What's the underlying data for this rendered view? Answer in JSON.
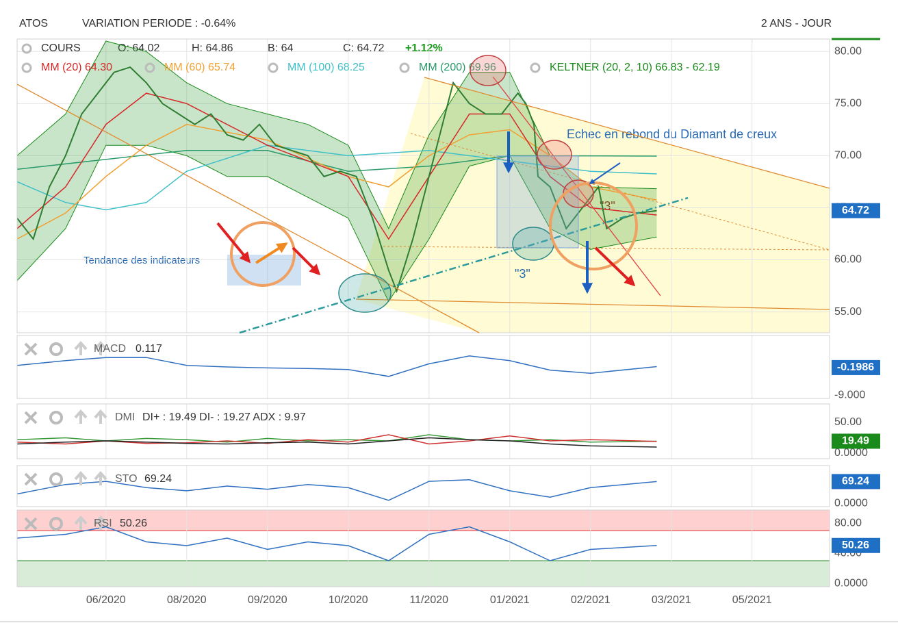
{
  "chart_data": [
    {
      "type": "line",
      "title": "ATOS",
      "subtitle": "VARIATION PERIODE : -0.64%",
      "period_label": "2 ANS - JOUR",
      "quote": [
        "O: 64.02",
        "H: 64.86",
        "B: 64",
        "C: 64.72",
        "+1.12%"
      ],
      "xlim": [
        -1.1,
        8.96
      ],
      "xticks": [
        {
          "value": 0,
          "label": "06/2020"
        },
        {
          "value": 1,
          "label": "08/2020"
        },
        {
          "value": 2,
          "label": "09/2020"
        },
        {
          "value": 3,
          "label": "10/2020"
        },
        {
          "value": 4,
          "label": "11/2020"
        },
        {
          "value": 5,
          "label": "01/2021"
        },
        {
          "value": 6,
          "label": "02/2021"
        },
        {
          "value": 7,
          "label": "03/2021"
        },
        {
          "value": 8,
          "label": "05/2021"
        }
      ],
      "ylim": [
        53,
        81.2
      ],
      "yticks": [
        {
          "value": 55,
          "label": "55.00"
        },
        {
          "value": 60,
          "label": "60.00"
        },
        {
          "value": 65,
          "label": "65.00"
        },
        {
          "value": 70,
          "label": "70.00"
        },
        {
          "value": 75,
          "label": "75.00"
        },
        {
          "value": 80,
          "label": "80.00"
        }
      ],
      "grid": true,
      "badge": 64.72,
      "badge_color": "#1f6fc5",
      "series": [
        {
          "name": "KELTNER (20, 2, 10) 66.83 - 62.19",
          "color": "#1a8a1a",
          "x": [
            -1.1,
            -0.5,
            0,
            0.5,
            1,
            1.5,
            2,
            2.5,
            3,
            3.5,
            4,
            4.5,
            5,
            5.5,
            6,
            6.82
          ],
          "upper": [
            70,
            74,
            81,
            80,
            77,
            75,
            74,
            73,
            71,
            63,
            72,
            78,
            78,
            70,
            67,
            66.83
          ],
          "lower": [
            58,
            63,
            71,
            71,
            70,
            68,
            68,
            66,
            64,
            56,
            62,
            69,
            70,
            63,
            61,
            62.19
          ]
        },
        {
          "name": "MM (200) 69.96",
          "color": "#2a9a6a",
          "x": [
            -1.1,
            1,
            2,
            3,
            4,
            5,
            6.82
          ],
          "values": [
            68.7,
            70.5,
            70.5,
            68.5,
            69,
            70,
            69.96
          ]
        },
        {
          "name": "MM (100) 68.25",
          "color": "#40c0c8",
          "x": [
            -1.1,
            -0.5,
            0,
            0.5,
            1,
            2,
            3,
            4,
            5,
            6,
            6.82
          ],
          "values": [
            67.5,
            65.5,
            64.8,
            65.5,
            68.5,
            71,
            70,
            70.5,
            69.5,
            68.5,
            68.25
          ]
        },
        {
          "name": "MM (60) 65.74",
          "color": "#f0a030",
          "x": [
            -1.1,
            -0.5,
            0,
            0.5,
            1,
            2,
            3,
            3.5,
            4,
            4.5,
            5,
            5.5,
            6,
            6.82
          ],
          "values": [
            62,
            64.5,
            68,
            71,
            73,
            71.5,
            68,
            67,
            70,
            72,
            72.5,
            70,
            67,
            65.74
          ]
        },
        {
          "name": "MM (20) 64.30",
          "color": "#d62728",
          "x": [
            -1.1,
            -0.5,
            0,
            0.5,
            1,
            2,
            3,
            3.5,
            4,
            4.5,
            5,
            5.5,
            6,
            6.82
          ],
          "values": [
            63,
            67,
            73,
            76,
            75,
            71,
            68,
            62,
            68,
            74,
            74,
            68,
            65,
            64.3
          ]
        },
        {
          "name": "COURS",
          "color": "#2e7d32",
          "x": [
            -1.1,
            -0.9,
            -0.7,
            -0.5,
            -0.3,
            -0.1,
            0.1,
            0.3,
            0.5,
            0.7,
            0.9,
            1.1,
            1.3,
            1.5,
            1.7,
            1.9,
            2.1,
            2.3,
            2.5,
            2.7,
            2.9,
            3.1,
            3.3,
            3.5,
            3.6,
            3.8,
            4.0,
            4.2,
            4.3,
            4.5,
            4.7,
            4.9,
            5.1,
            5.2,
            5.3,
            5.35,
            5.5,
            5.7,
            5.9,
            6.1,
            6.2,
            6.4,
            6.6,
            6.82
          ],
          "values": [
            64,
            62,
            67,
            70,
            74,
            76,
            78,
            78.5,
            77,
            75,
            74,
            73,
            74,
            72,
            71.5,
            73,
            71,
            70.5,
            70,
            68,
            68.5,
            68,
            64,
            59,
            57,
            62,
            68,
            74,
            77,
            75,
            74,
            74,
            76,
            75,
            73,
            68,
            67,
            63,
            65,
            67,
            63,
            64,
            64.5,
            64.72
          ]
        }
      ],
      "annotations": [
        "Echec en rebond du Diamant de creux",
        "Tendance des indicateurs",
        "\"3\"",
        "\"3\""
      ]
    },
    {
      "type": "line",
      "title": "MACD",
      "subtitle": "0.117",
      "ylim": [
        -10,
        10
      ],
      "yticks": [
        {
          "value": -9,
          "label": "-9.000"
        }
      ],
      "badge": {
        "value": -0.1986,
        "label": "-0.1986"
      },
      "badge_color": "#1f6fc5",
      "x": [
        -1.1,
        -0.5,
        0,
        0.5,
        1,
        1.5,
        2,
        2.5,
        3,
        3.5,
        4,
        4.5,
        5,
        5.5,
        6,
        6.82
      ],
      "series": [
        {
          "color": "#3070c0",
          "values": [
            0.5,
            2,
            3,
            3,
            0.5,
            0,
            -0.3,
            -0.5,
            -0.8,
            -3,
            1,
            3.5,
            2,
            -1,
            -2,
            0.117
          ]
        }
      ]
    },
    {
      "type": "line",
      "title": "DMI",
      "subtitle": "DI+ : 19.49 DI- : 19.27 ADX : 9.97",
      "ylim": [
        -8.9,
        80
      ],
      "yticks": [
        {
          "value": 50,
          "label": "50.00"
        },
        {
          "value": 0,
          "label": "0.0000"
        }
      ],
      "badge": 19.49,
      "badge_color": "#1a8a1a",
      "x": [
        -1.1,
        -0.5,
        0,
        0.5,
        1,
        1.5,
        2,
        2.5,
        3,
        3.5,
        4,
        4.5,
        5,
        5.5,
        6,
        6.82
      ],
      "series": [
        {
          "color": "#3a9a3a",
          "values": [
            22,
            25,
            20,
            24,
            22,
            18,
            24,
            20,
            22,
            20,
            30,
            22,
            20,
            22,
            18,
            19.49
          ]
        },
        {
          "color": "#d03030",
          "values": [
            18,
            15,
            20,
            16,
            17,
            20,
            16,
            22,
            18,
            30,
            15,
            20,
            28,
            20,
            22,
            19.27
          ]
        },
        {
          "color": "#222222",
          "values": [
            15,
            18,
            20,
            18,
            16,
            15,
            17,
            18,
            15,
            20,
            25,
            22,
            20,
            15,
            12,
            9.97
          ]
        }
      ]
    },
    {
      "type": "line",
      "title": "STO",
      "subtitle": "69.24",
      "ylim": [
        -10,
        120
      ],
      "yticks": [
        {
          "value": 0,
          "label": "0.0000"
        }
      ],
      "badge": 69.24,
      "badge_color": "#1f6fc5",
      "x": [
        -1.1,
        -0.5,
        0,
        0.5,
        1,
        1.5,
        2,
        2.5,
        3,
        3.5,
        4,
        4.5,
        5,
        5.5,
        6,
        6.82
      ],
      "series": [
        {
          "color": "#3070c0",
          "values": [
            30,
            60,
            70,
            50,
            40,
            55,
            45,
            60,
            50,
            10,
            70,
            75,
            40,
            20,
            50,
            69.24
          ]
        }
      ]
    },
    {
      "type": "line",
      "title": "RSI",
      "subtitle": "50.26",
      "ylim": [
        -4.5,
        97.3
      ],
      "yticks": [
        {
          "value": 80,
          "label": "80.00"
        },
        {
          "value": 40,
          "label": "40.00"
        },
        {
          "value": 0,
          "label": "0.0000"
        }
      ],
      "upper_zone": 70,
      "lower_zone": 30,
      "badge": 50.26,
      "badge_color": "#1f6fc5",
      "x": [
        -1.1,
        -0.5,
        0,
        0.5,
        1,
        1.5,
        2,
        2.5,
        3,
        3.5,
        4,
        4.5,
        5,
        5.5,
        6,
        6.82
      ],
      "series": [
        {
          "color": "#3070c0",
          "values": [
            60,
            65,
            75,
            55,
            50,
            60,
            45,
            55,
            50,
            30,
            65,
            75,
            55,
            30,
            45,
            50.26
          ]
        }
      ]
    }
  ]
}
